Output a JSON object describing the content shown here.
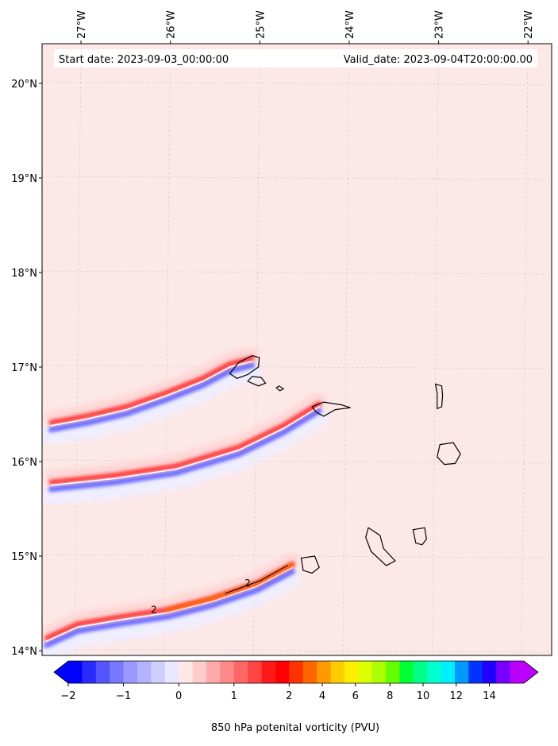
{
  "chart_data": {
    "type": "heatmap",
    "title": "",
    "header": {
      "start_date": "Start date: 2023-09-03_00:00:00",
      "valid_date": "Valid_date: 2023-09-04T20:00:00.00"
    },
    "lon_ticks": [
      "27°W",
      "26°W",
      "25°W",
      "24°W",
      "23°W",
      "22°W"
    ],
    "lon_values": [
      -27,
      -26,
      -25,
      -24,
      -23,
      -22
    ],
    "lat_ticks": [
      "20°N",
      "19°N",
      "18°N",
      "17°N",
      "16°N",
      "15°N",
      "14°N"
    ],
    "lat_values": [
      20,
      19,
      18,
      17,
      16,
      15,
      14
    ],
    "lon_range": [
      -27.4,
      -21.7
    ],
    "lat_range": [
      13.95,
      20.42
    ],
    "grid": true,
    "background_level": 0.1,
    "contour_label": "2",
    "colorbar": {
      "label": "850 hPa potenital vorticity (PVU)",
      "tick_labels": [
        "−2",
        "−1",
        "0",
        "1",
        "2",
        "4",
        "6",
        "8",
        "10",
        "12",
        "14"
      ],
      "colors": [
        "#0000ff",
        "#2a2aff",
        "#5555ff",
        "#7777ff",
        "#9999ff",
        "#b3b3ff",
        "#cfcfff",
        "#e8e8ff",
        "#ffe8e8",
        "#ffcccc",
        "#ffaaaa",
        "#ff8888",
        "#ff6666",
        "#ff4444",
        "#ff1a1a",
        "#ff0000",
        "#ff3300",
        "#ff6600",
        "#ff9900",
        "#ffcc00",
        "#ffee00",
        "#ddff00",
        "#aaff00",
        "#66ff00",
        "#00ff33",
        "#00ff88",
        "#00ffcc",
        "#00eeff",
        "#0099ff",
        "#0033ff",
        "#2200ff",
        "#7700ff",
        "#bb00ff"
      ],
      "extend": "both"
    },
    "bands": [
      {
        "name": "northern-pv-band",
        "points": [
          [
            -27.3,
            16.38
          ],
          [
            -26.9,
            16.45
          ],
          [
            -26.45,
            16.55
          ],
          [
            -26.0,
            16.7
          ],
          [
            -25.6,
            16.85
          ],
          [
            -25.3,
            17.0
          ],
          [
            -25.05,
            17.06
          ]
        ]
      },
      {
        "name": "middle-pv-band",
        "points": [
          [
            -27.3,
            15.75
          ],
          [
            -26.6,
            15.82
          ],
          [
            -25.9,
            15.92
          ],
          [
            -25.2,
            16.12
          ],
          [
            -24.7,
            16.35
          ],
          [
            -24.3,
            16.58
          ]
        ]
      },
      {
        "name": "southern-pv-band",
        "points": [
          [
            -27.35,
            14.1
          ],
          [
            -27.0,
            14.25
          ],
          [
            -26.5,
            14.33
          ],
          [
            -26.0,
            14.4
          ],
          [
            -25.5,
            14.52
          ],
          [
            -25.0,
            14.68
          ],
          [
            -24.6,
            14.88
          ]
        ]
      }
    ],
    "islands": [
      {
        "name": "santo-antao",
        "points": [
          [
            -25.3,
            16.93
          ],
          [
            -25.2,
            17.05
          ],
          [
            -25.05,
            17.12
          ],
          [
            -24.97,
            17.1
          ],
          [
            -24.98,
            17.0
          ],
          [
            -25.1,
            16.92
          ],
          [
            -25.22,
            16.88
          ]
        ]
      },
      {
        "name": "sao-vicente",
        "points": [
          [
            -25.1,
            16.85
          ],
          [
            -25.05,
            16.9
          ],
          [
            -24.95,
            16.89
          ],
          [
            -24.9,
            16.83
          ],
          [
            -24.98,
            16.8
          ]
        ]
      },
      {
        "name": "santa-luzia",
        "points": [
          [
            -24.78,
            16.78
          ],
          [
            -24.75,
            16.8
          ],
          [
            -24.7,
            16.77
          ],
          [
            -24.74,
            16.75
          ]
        ]
      },
      {
        "name": "sao-nicolau",
        "points": [
          [
            -24.38,
            16.58
          ],
          [
            -24.25,
            16.63
          ],
          [
            -24.05,
            16.6
          ],
          [
            -23.95,
            16.57
          ],
          [
            -24.12,
            16.55
          ],
          [
            -24.25,
            16.48
          ],
          [
            -24.33,
            16.52
          ]
        ]
      },
      {
        "name": "sal",
        "points": [
          [
            -23.0,
            16.82
          ],
          [
            -22.93,
            16.8
          ],
          [
            -22.92,
            16.7
          ],
          [
            -22.93,
            16.58
          ],
          [
            -22.98,
            16.56
          ],
          [
            -22.98,
            16.72
          ]
        ]
      },
      {
        "name": "boa-vista",
        "points": [
          [
            -22.95,
            16.18
          ],
          [
            -22.8,
            16.2
          ],
          [
            -22.72,
            16.08
          ],
          [
            -22.78,
            15.98
          ],
          [
            -22.9,
            15.97
          ],
          [
            -22.98,
            16.05
          ]
        ]
      },
      {
        "name": "santiago",
        "points": [
          [
            -23.75,
            15.3
          ],
          [
            -23.62,
            15.22
          ],
          [
            -23.58,
            15.08
          ],
          [
            -23.45,
            14.95
          ],
          [
            -23.55,
            14.9
          ],
          [
            -23.72,
            15.05
          ],
          [
            -23.78,
            15.2
          ]
        ]
      },
      {
        "name": "maio",
        "points": [
          [
            -23.25,
            15.28
          ],
          [
            -23.12,
            15.3
          ],
          [
            -23.1,
            15.18
          ],
          [
            -23.15,
            15.12
          ],
          [
            -23.22,
            15.14
          ]
        ]
      },
      {
        "name": "fogo",
        "points": [
          [
            -24.5,
            14.98
          ],
          [
            -24.35,
            15.0
          ],
          [
            -24.3,
            14.88
          ],
          [
            -24.38,
            14.82
          ],
          [
            -24.48,
            14.85
          ]
        ]
      }
    ]
  }
}
